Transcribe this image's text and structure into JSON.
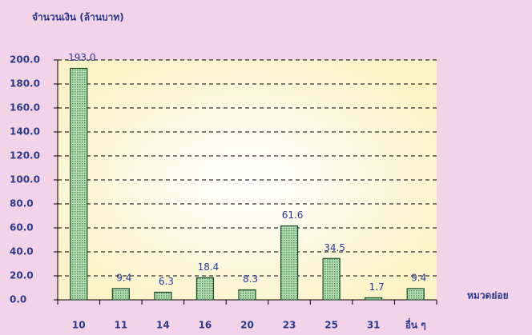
{
  "chart_data": {
    "type": "bar",
    "y_axis_title": "จำนวนเงิน (ล้านบาท)",
    "x_axis_title": "หมวดย่อย",
    "categories": [
      "10",
      "11",
      "14",
      "16",
      "20",
      "23",
      "25",
      "31",
      "อื่น ๆ"
    ],
    "values": [
      193.0,
      9.4,
      6.3,
      18.4,
      8.3,
      61.6,
      34.5,
      1.7,
      9.4
    ],
    "value_labels": [
      "193.0",
      "9.4",
      "6.3",
      "18.4",
      "8.3",
      "61.6",
      "34.5",
      "1.7",
      "9.4"
    ],
    "color": "#9ccf9f",
    "ylim": [
      0,
      200
    ],
    "yticks": [
      {
        "value": 0,
        "label": "0.0"
      },
      {
        "value": 20,
        "label": "20.0"
      },
      {
        "value": 40,
        "label": "40.0"
      },
      {
        "value": 60,
        "label": "60.0"
      },
      {
        "value": 80,
        "label": "80.0"
      },
      {
        "value": 100,
        "label": "100.0"
      },
      {
        "value": 120,
        "label": "120.0"
      },
      {
        "value": 140,
        "label": "140.0"
      },
      {
        "value": 160,
        "label": "160.0"
      },
      {
        "value": 180,
        "label": "180.0"
      },
      {
        "value": 200,
        "label": "200.0"
      }
    ],
    "grid": true
  }
}
